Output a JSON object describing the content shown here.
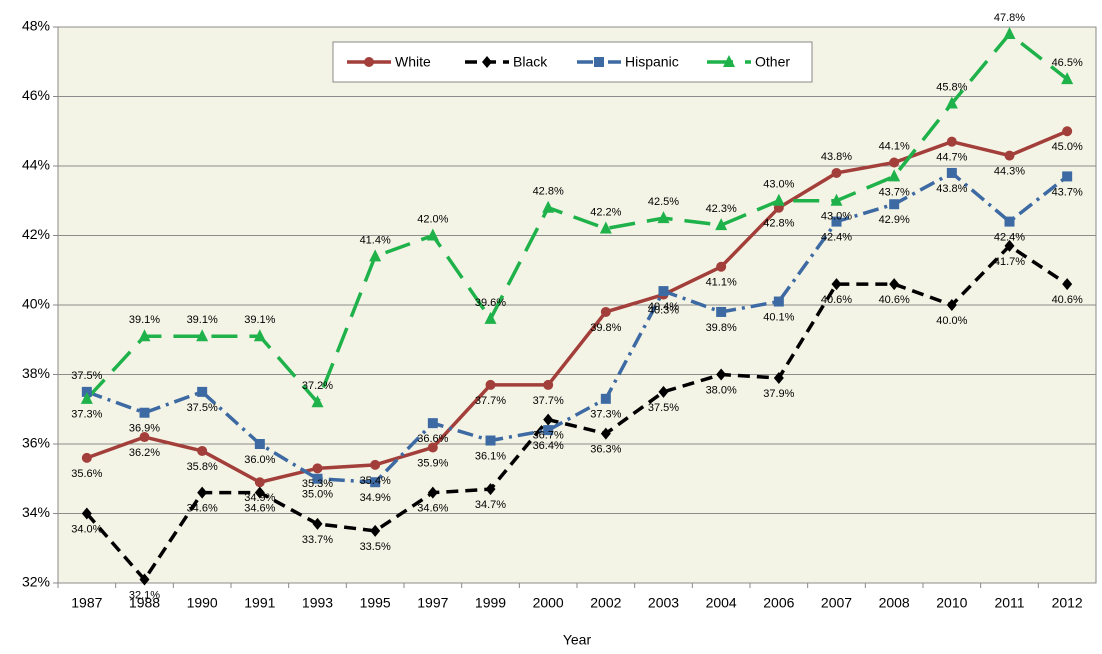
{
  "chart_data": {
    "type": "line",
    "x_label": "Year",
    "categories": [
      "1987",
      "1988",
      "1990",
      "1991",
      "1993",
      "1995",
      "1997",
      "1999",
      "2000",
      "2002",
      "2003",
      "2004",
      "2006",
      "2007",
      "2008",
      "2010",
      "2011",
      "2012"
    ],
    "series": [
      {
        "name": "White",
        "color": "#a33f3a",
        "marker": "circle",
        "dash": "solid",
        "values": [
          35.6,
          36.2,
          35.8,
          34.9,
          35.3,
          35.4,
          35.9,
          37.7,
          37.7,
          39.8,
          40.3,
          41.1,
          42.8,
          43.8,
          44.1,
          44.7,
          44.3,
          45.0
        ],
        "value_labels": [
          "35.6%",
          "36.2%",
          "35.8%",
          "34.9%",
          "35.3%",
          "35.4%",
          "35.9%",
          "37.7%",
          "37.7%",
          "39.8%",
          "40.3%",
          "41.1%",
          "42.8%",
          "43.8%",
          "44.1%",
          "44.7%",
          "44.3%",
          "45.0%"
        ]
      },
      {
        "name": "Black",
        "color": "#000000",
        "marker": "diamond",
        "dash": "dash",
        "values": [
          34.0,
          32.1,
          34.6,
          34.6,
          33.7,
          33.5,
          34.6,
          34.7,
          36.7,
          36.3,
          37.5,
          38.0,
          37.9,
          40.6,
          40.6,
          40.0,
          41.7,
          40.6
        ],
        "value_labels": [
          "34.0%",
          "32.1%",
          "34.6%",
          "34.6%",
          "33.7%",
          "33.5%",
          "34.6%",
          "34.7%",
          "36.7%",
          "36.3%",
          "37.5%",
          "38.0%",
          "37.9%",
          "40.6%",
          "40.6%",
          "40.0%",
          "41.7%",
          "40.6%"
        ]
      },
      {
        "name": "Hispanic",
        "color": "#3d6aa3",
        "marker": "square",
        "dash": "dashdot",
        "values": [
          37.5,
          36.9,
          37.5,
          36.0,
          35.0,
          34.9,
          36.6,
          36.1,
          36.4,
          37.3,
          40.4,
          39.8,
          40.1,
          42.4,
          42.9,
          43.8,
          42.4,
          43.7
        ],
        "value_labels": [
          "37.5%",
          "36.9%",
          "37.5%",
          "36.0%",
          "35.0%",
          "34.9%",
          "36.6%",
          "36.1%",
          "36.4%",
          "37.3%",
          "40.4%",
          "39.8%",
          "40.1%",
          "42.4%",
          "42.9%",
          "43.8%",
          "42.4%",
          "43.7%"
        ]
      },
      {
        "name": "Other",
        "color": "#1fb24a",
        "marker": "triangle",
        "dash": "longdash",
        "values": [
          37.3,
          39.1,
          39.1,
          39.1,
          37.2,
          41.4,
          42.0,
          39.6,
          42.8,
          42.2,
          42.5,
          42.3,
          43.0,
          43.0,
          43.7,
          45.8,
          47.8,
          46.5
        ],
        "value_labels": [
          "37.3%",
          "39.1%",
          "39.1%",
          "39.1%",
          "37.2%",
          "41.4%",
          "42.0%",
          "39.6%",
          "42.8%",
          "42.2%",
          "42.5%",
          "42.3%",
          "43.0%",
          "43.0%",
          "43.7%",
          "45.8%",
          "47.8%",
          "46.5%"
        ]
      }
    ],
    "ylim": [
      32,
      48
    ],
    "yticks": [
      {
        "value": 32,
        "label": "32%"
      },
      {
        "value": 34,
        "label": "34%"
      },
      {
        "value": 36,
        "label": "36%"
      },
      {
        "value": 38,
        "label": "38%"
      },
      {
        "value": 40,
        "label": "40%"
      },
      {
        "value": 42,
        "label": "42%"
      },
      {
        "value": 44,
        "label": "44%"
      },
      {
        "value": 46,
        "label": "46%"
      },
      {
        "value": 48,
        "label": "48%"
      }
    ],
    "grid": true,
    "legend": "top",
    "plot_background": "#f4f4e6"
  }
}
